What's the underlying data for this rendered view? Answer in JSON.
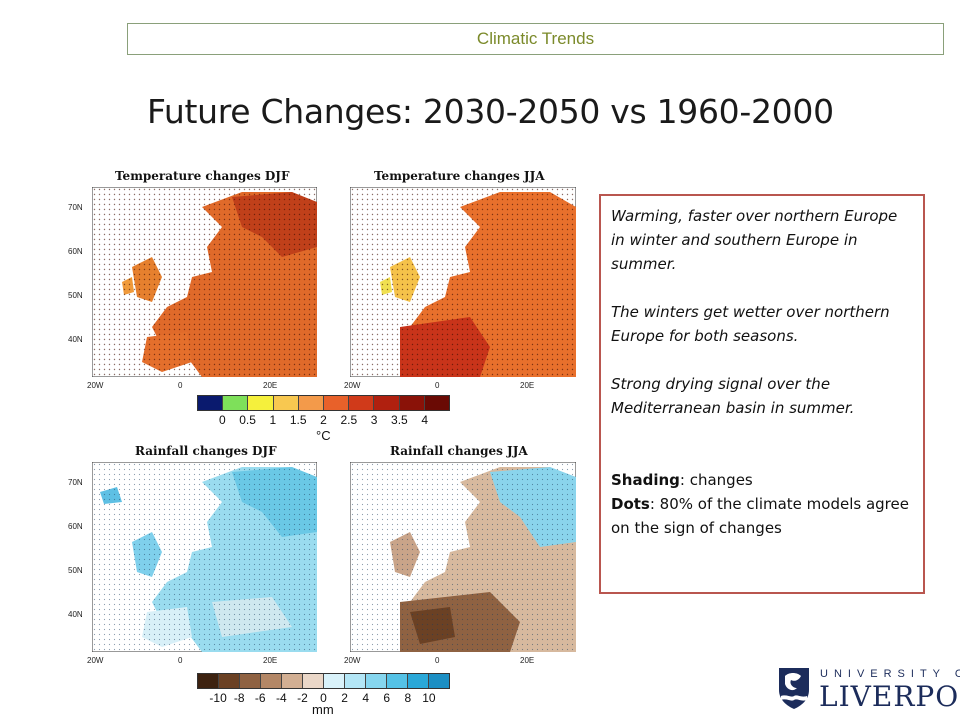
{
  "header": {
    "label": "Climatic Trends"
  },
  "slide": {
    "title": "Future Changes: 2030-2050 vs 1960-2000"
  },
  "maps": {
    "temp_djf": {
      "title": "Temperature changes DJF"
    },
    "temp_jja": {
      "title": "Temperature changes JJA"
    },
    "rain_djf": {
      "title": "Rainfall changes DJF"
    },
    "rain_jja": {
      "title": "Rainfall changes JJA"
    },
    "lat_labels": [
      "70N",
      "60N",
      "50N",
      "40N"
    ],
    "lon_labels": [
      "20W",
      "0",
      "20E"
    ]
  },
  "temp_colorbar": {
    "ticks": [
      "0",
      "0.5",
      "1",
      "1.5",
      "2",
      "2.5",
      "3",
      "3.5",
      "4"
    ],
    "unit": "°C",
    "colors": [
      "#0a1a6e",
      "#7ee05a",
      "#f5f03c",
      "#f8c850",
      "#f39a4a",
      "#e8612a",
      "#d03a1a",
      "#b0200f",
      "#8a1208",
      "#6a0a04"
    ]
  },
  "rain_colorbar": {
    "ticks": [
      "-10",
      "-8",
      "-6",
      "-4",
      "-2",
      "0",
      "2",
      "4",
      "6",
      "8",
      "10"
    ],
    "unit": "mm",
    "colors": [
      "#3d2210",
      "#6b4124",
      "#8f6242",
      "#b38766",
      "#d2af93",
      "#ead7c8",
      "#d9f2fa",
      "#b3e6f6",
      "#86d6ef",
      "#55c2e6",
      "#2aa8d8",
      "#1c8fc4"
    ]
  },
  "notes": {
    "p1": "Warming, faster over northern Europe in winter and southern Europe in summer.",
    "p2": "The winters get wetter over northern Europe for both seasons.",
    "p3": "Strong drying signal over the Mediterranean basin in summer.",
    "shading_label": "Shading",
    "shading_text": ": changes",
    "dots_label": "Dots",
    "dots_text": ": 80% of the climate models agree on the sign of changes"
  },
  "logo": {
    "top": "UNIVERSITY OF",
    "main": "LIVERPOOL"
  }
}
